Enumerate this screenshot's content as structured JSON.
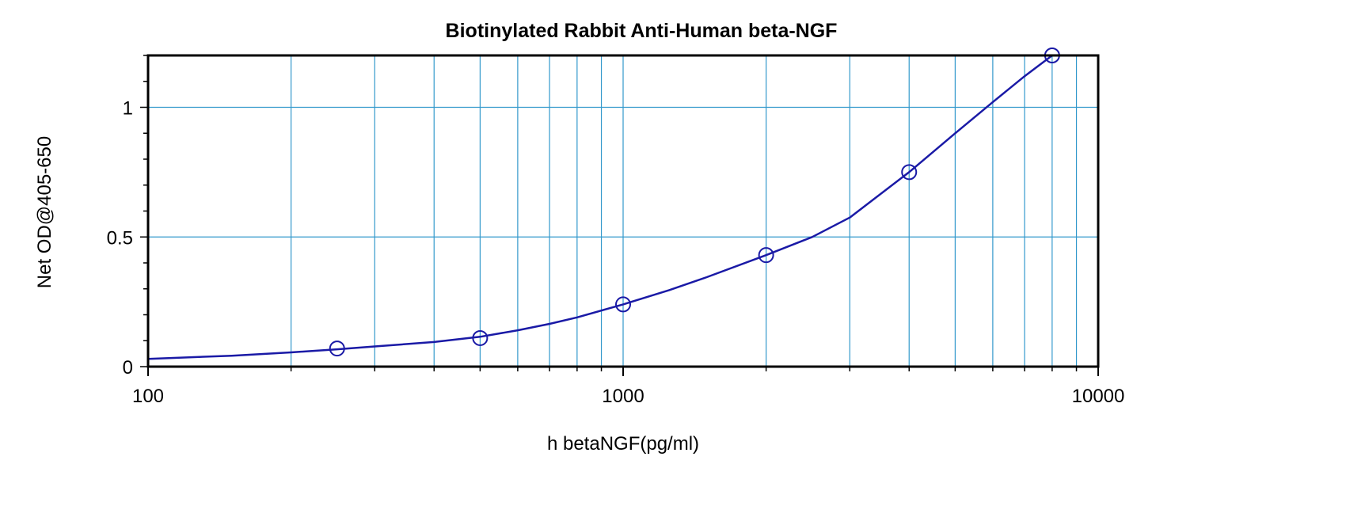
{
  "chart_data": {
    "type": "scatter",
    "title": "Biotinylated Rabbit Anti-Human beta-NGF",
    "xlabel": "h betaNGF(pg/ml)",
    "ylabel": "Net OD@405-650",
    "x_scale": "log",
    "xlim": [
      100,
      10000
    ],
    "ylim": [
      0,
      1.2
    ],
    "x_ticks": [
      {
        "value": 100,
        "label": "100"
      },
      {
        "value": 1000,
        "label": "1000"
      },
      {
        "value": 10000,
        "label": "10000"
      }
    ],
    "y_ticks": [
      {
        "value": 0,
        "label": "0"
      },
      {
        "value": 0.5,
        "label": "0.5"
      },
      {
        "value": 1,
        "label": "1"
      }
    ],
    "grid": true,
    "colors": {
      "grid": "#3399cc",
      "series": "#1a1aa6"
    },
    "series": [
      {
        "marker": "open-circle",
        "points": [
          {
            "x": 250,
            "y": 0.07
          },
          {
            "x": 500,
            "y": 0.11
          },
          {
            "x": 1000,
            "y": 0.24
          },
          {
            "x": 2000,
            "y": 0.43
          },
          {
            "x": 4000,
            "y": 0.75
          },
          {
            "x": 8000,
            "y": 1.2
          }
        ],
        "fit_curve": {
          "x": [
            100,
            150,
            200,
            250,
            300,
            400,
            500,
            600,
            700,
            800,
            1000,
            1250,
            1500,
            2000,
            2500,
            3000,
            4000,
            5000,
            6000,
            7000,
            8000
          ],
          "y": [
            0.03,
            0.042,
            0.055,
            0.067,
            0.078,
            0.095,
            0.115,
            0.14,
            0.165,
            0.19,
            0.24,
            0.295,
            0.345,
            0.43,
            0.5,
            0.575,
            0.75,
            0.9,
            1.02,
            1.12,
            1.2
          ]
        }
      }
    ]
  }
}
